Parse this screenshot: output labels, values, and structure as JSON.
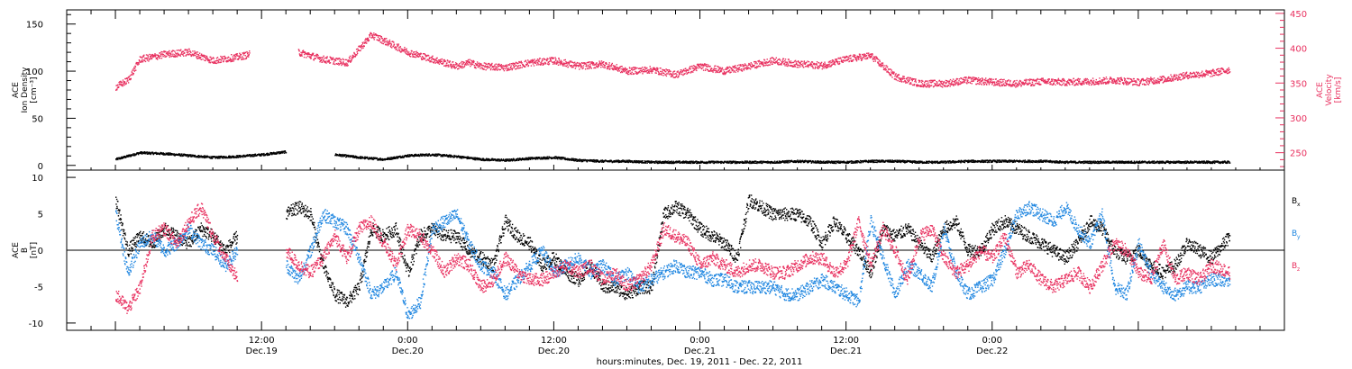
{
  "colors": {
    "black": "#000000",
    "pink": "#e8305f",
    "blue": "#1f86e0"
  },
  "chart_data": [
    {
      "type": "scatter",
      "panel": "top",
      "left_axis": {
        "label_lines": [
          "ACE",
          "Ion Density",
          "[cm⁻³]"
        ],
        "range": [
          -5,
          165
        ],
        "ticks": [
          0,
          50,
          100,
          150
        ]
      },
      "right_axis": {
        "label_lines": [
          "ACE",
          "Velocity",
          "[km/s]"
        ],
        "range": [
          225,
          455
        ],
        "ticks": [
          250,
          300,
          350,
          400,
          450
        ]
      },
      "series": [
        {
          "color": "black",
          "axis": "left",
          "x": [
            0,
            2,
            4,
            6,
            8,
            10,
            12,
            14,
            16,
            18,
            20,
            22,
            24,
            26,
            28,
            30,
            32,
            34,
            36,
            38,
            40,
            42,
            44,
            46,
            48,
            50,
            52,
            54,
            56,
            58,
            60,
            62,
            64,
            66,
            68,
            70,
            72,
            74,
            76,
            78,
            80,
            82,
            84,
            86,
            88,
            90,
            91.5
          ],
          "y": [
            7,
            14,
            13,
            11,
            9,
            10,
            12,
            15,
            null,
            12,
            9,
            7,
            11,
            12,
            10,
            7,
            6,
            8,
            9,
            6,
            5,
            5,
            4,
            4,
            4,
            4,
            4,
            4,
            5,
            4,
            4,
            5,
            5,
            4,
            4,
            5,
            5,
            5,
            5,
            4,
            4,
            4,
            4,
            4,
            4,
            4,
            4
          ]
        },
        {
          "color": "pink",
          "axis": "right",
          "x": [
            0,
            1,
            2,
            3,
            4,
            6,
            8,
            10,
            11,
            14,
            15,
            16,
            17,
            19,
            21,
            24,
            26,
            28,
            29,
            30,
            32,
            34,
            36,
            38,
            40,
            42,
            44,
            46,
            48,
            50,
            52,
            54,
            56,
            58,
            60,
            62,
            64,
            66,
            68,
            70,
            72,
            74,
            76,
            78,
            80,
            82,
            84,
            86,
            88,
            90,
            91.5
          ],
          "y": [
            345,
            355,
            385,
            388,
            392,
            395,
            383,
            388,
            392,
            null,
            395,
            390,
            385,
            380,
            420,
            395,
            385,
            375,
            380,
            375,
            373,
            380,
            383,
            375,
            378,
            368,
            370,
            363,
            375,
            368,
            375,
            383,
            378,
            376,
            385,
            390,
            360,
            350,
            350,
            355,
            352,
            350,
            353,
            352,
            353,
            355,
            352,
            356,
            362,
            365,
            370
          ]
        }
      ]
    },
    {
      "type": "scatter",
      "panel": "bottom",
      "left_axis": {
        "label_lines": [
          "ACE",
          "B",
          "[nT]"
        ],
        "range": [
          -11,
          11
        ],
        "ticks": [
          -10,
          -5,
          0,
          5,
          10
        ]
      },
      "zero_line": true,
      "legend": [
        {
          "text": "B",
          "sub": "x",
          "color": "black"
        },
        {
          "text": "B",
          "sub": "y",
          "color": "blue"
        },
        {
          "text": "B",
          "sub": "z",
          "color": "pink"
        }
      ],
      "series": [
        {
          "name": "Bx",
          "color": "black",
          "x": [
            0,
            1,
            2,
            3,
            4,
            5,
            6,
            7,
            8,
            9,
            10,
            11,
            12,
            14,
            15,
            16,
            17,
            18,
            19,
            20,
            21,
            22,
            23,
            24,
            25,
            26,
            27,
            28,
            29,
            30,
            31,
            32,
            33,
            34,
            35,
            36,
            37,
            38,
            39,
            40,
            41,
            42,
            43,
            44,
            45,
            46,
            47,
            48,
            49,
            50,
            51,
            52,
            53,
            54,
            55,
            56,
            57,
            58,
            59,
            60,
            61,
            62,
            63,
            64,
            65,
            66,
            67,
            68,
            69,
            70,
            71,
            72,
            73,
            74,
            75,
            76,
            77,
            78,
            79,
            80,
            81,
            82,
            83,
            84,
            85,
            86,
            87,
            88,
            89,
            90,
            91.5
          ],
          "y": [
            7,
            0,
            2,
            1,
            3,
            2,
            1,
            3,
            2,
            0,
            2,
            null,
            null,
            5,
            6,
            5,
            -2,
            -6,
            -7,
            -5,
            3,
            2,
            3,
            -3,
            2,
            3,
            2,
            2,
            0,
            -1,
            -2,
            4,
            2,
            1,
            -2,
            -1,
            -3,
            -4,
            -2,
            -5,
            -5,
            -6,
            -5,
            -5,
            5,
            6,
            5,
            3,
            2,
            1,
            -1,
            7,
            6,
            5,
            5,
            5,
            4,
            1,
            4,
            2,
            0,
            -3,
            3,
            2,
            3,
            1,
            -1,
            3,
            4,
            0,
            0,
            3,
            4,
            3,
            2,
            1,
            0,
            -1,
            1,
            4,
            3,
            0,
            -1,
            0,
            -2,
            -3,
            -2,
            1,
            0,
            -1,
            2
          ]
        },
        {
          "name": "By",
          "color": "blue",
          "x": [
            0,
            1,
            2,
            3,
            4,
            5,
            6,
            7,
            8,
            9,
            10,
            11,
            12,
            14,
            15,
            16,
            17,
            18,
            19,
            20,
            21,
            22,
            23,
            24,
            25,
            26,
            27,
            28,
            29,
            30,
            31,
            32,
            33,
            34,
            35,
            36,
            37,
            38,
            39,
            40,
            41,
            42,
            43,
            44,
            45,
            46,
            47,
            48,
            49,
            50,
            51,
            52,
            53,
            54,
            55,
            56,
            57,
            58,
            59,
            60,
            61,
            62,
            63,
            64,
            65,
            66,
            67,
            68,
            69,
            70,
            71,
            72,
            73,
            74,
            75,
            76,
            77,
            78,
            79,
            80,
            81,
            82,
            83,
            84,
            85,
            86,
            87,
            88,
            89,
            90,
            91.5
          ],
          "y": [
            5,
            -3,
            1,
            2,
            0,
            1,
            3,
            1,
            0,
            -2,
            0,
            null,
            null,
            -2,
            -4,
            0,
            5,
            4,
            3,
            -1,
            -6,
            -5,
            -3,
            -9,
            -7,
            3,
            4,
            5,
            1,
            -2,
            -3,
            -6,
            -4,
            -2,
            0,
            -3,
            -2,
            -1,
            -3,
            -2,
            -4,
            -3,
            -5,
            -4,
            -3,
            -2,
            -3,
            -3,
            -4,
            -4,
            -5,
            -5,
            -5,
            -5,
            -6,
            -6,
            -5,
            -4,
            -5,
            -6,
            -7,
            4,
            -1,
            -6,
            -2,
            -3,
            -5,
            3,
            -3,
            -6,
            -5,
            -4,
            0,
            5,
            6,
            5,
            4,
            6,
            3,
            1,
            5,
            -5,
            -6,
            1,
            -3,
            -5,
            -6,
            -5,
            -5,
            -4,
            -4
          ]
        },
        {
          "name": "Bz",
          "color": "pink",
          "x": [
            0,
            1,
            2,
            3,
            4,
            5,
            6,
            7,
            8,
            9,
            10,
            11,
            12,
            14,
            15,
            16,
            17,
            18,
            19,
            20,
            21,
            22,
            23,
            24,
            25,
            26,
            27,
            28,
            29,
            30,
            31,
            32,
            33,
            34,
            35,
            36,
            37,
            38,
            39,
            40,
            41,
            42,
            43,
            44,
            45,
            46,
            47,
            48,
            49,
            50,
            51,
            52,
            53,
            54,
            55,
            56,
            57,
            58,
            59,
            60,
            61,
            62,
            63,
            64,
            65,
            66,
            67,
            68,
            69,
            70,
            71,
            72,
            73,
            74,
            75,
            76,
            77,
            78,
            79,
            80,
            81,
            82,
            83,
            84,
            85,
            86,
            87,
            88,
            89,
            90,
            91.5
          ],
          "y": [
            -6,
            -8,
            -5,
            2,
            3,
            1,
            4,
            6,
            2,
            -1,
            -4,
            null,
            null,
            0,
            -2,
            -3,
            -1,
            2,
            -1,
            3,
            4,
            1,
            -2,
            3,
            2,
            0,
            -3,
            -1,
            -2,
            -5,
            -4,
            -1,
            -3,
            -4,
            -4,
            -3,
            -2,
            -3,
            -2,
            -4,
            -3,
            -5,
            -4,
            -2,
            3,
            2,
            1,
            -2,
            -1,
            -2,
            -3,
            -2,
            -2,
            -3,
            -3,
            -2,
            -1,
            -1,
            -3,
            -2,
            4,
            -2,
            3,
            0,
            -4,
            2,
            3,
            -1,
            -3,
            -2,
            0,
            -1,
            2,
            -3,
            -2,
            -4,
            -5,
            -4,
            -3,
            -5,
            -2,
            1,
            0,
            -3,
            -4,
            1,
            -4,
            -3,
            -4,
            -2,
            -3
          ]
        }
      ]
    }
  ],
  "x_axis": {
    "range_hours": [
      -4,
      96
    ],
    "ticks": [
      {
        "h": 12,
        "time": "12:00",
        "date": "Dec.19"
      },
      {
        "h": 24,
        "time": "0:00",
        "date": "Dec.20"
      },
      {
        "h": 36,
        "time": "12:00",
        "date": "Dec.20"
      },
      {
        "h": 48,
        "time": "0:00",
        "date": "Dec.21"
      },
      {
        "h": 60,
        "time": "12:00",
        "date": "Dec.21"
      },
      {
        "h": 72,
        "time": "0:00",
        "date": "Dec.22"
      }
    ],
    "title": "hours:minutes, Dec. 19, 2011 - Dec. 22, 2011"
  }
}
